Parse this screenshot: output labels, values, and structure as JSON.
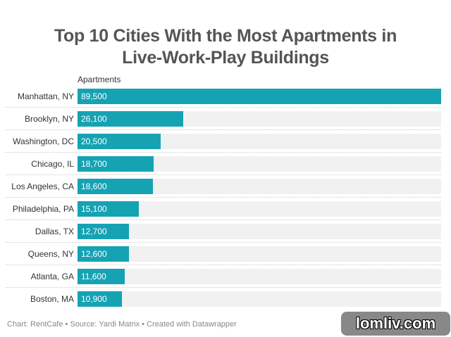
{
  "title_line1": "Top 10 Cities With the Most Apartments in",
  "title_line2": "Live-Work-Play Buildings",
  "column_label": "Apartments",
  "footer": "Chart: RentCafe • Source: Yardi Matrix • Created with Datawrapper",
  "watermark": "lomliv.com",
  "colors": {
    "bar": "#15a3b3",
    "track": "#f1f1f1",
    "title": "#555555"
  },
  "chart_data": {
    "type": "bar",
    "orientation": "horizontal",
    "title": "Top 10 Cities With the Most Apartments in Live-Work-Play Buildings",
    "xlabel": "Apartments",
    "ylabel": "",
    "categories": [
      "Manhattan, NY",
      "Brooklyn, NY",
      "Washington, DC",
      "Chicago, IL",
      "Los Angeles, CA",
      "Philadelphia, PA",
      "Dallas, TX",
      "Queens, NY",
      "Atlanta, GA",
      "Boston, MA"
    ],
    "values": [
      89500,
      26100,
      20500,
      18700,
      18600,
      15100,
      12700,
      12600,
      11600,
      10900
    ],
    "value_labels": [
      "89,500",
      "26,100",
      "20,500",
      "18,700",
      "18,600",
      "15,100",
      "12,700",
      "12,600",
      "11,600",
      "10,900"
    ],
    "xlim": [
      0,
      89500
    ],
    "grid": false,
    "legend": null
  }
}
